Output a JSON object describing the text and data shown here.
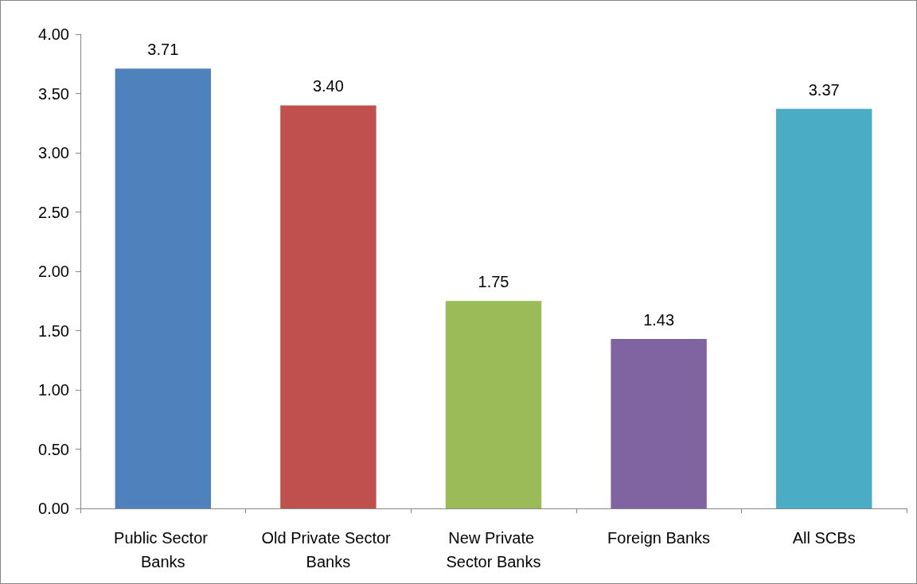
{
  "chart_data": {
    "type": "bar",
    "categories": [
      "Public Sector Banks",
      "Old Private Sector Banks",
      "New Private Sector Banks",
      "Foreign Banks",
      "All SCBs"
    ],
    "values": [
      3.71,
      3.4,
      1.75,
      1.43,
      3.37
    ],
    "colors": [
      "#4f81bd",
      "#c0504d",
      "#9bbb59",
      "#8064a2",
      "#4bacc6"
    ],
    "value_labels": [
      "3.71",
      "3.40",
      "1.75",
      "1.43",
      "3.37"
    ],
    "ylim": [
      0,
      4
    ],
    "yticks": [
      {
        "value": 0,
        "label": "0.00"
      },
      {
        "value": 0.5,
        "label": "0.50"
      },
      {
        "value": 1,
        "label": "1.00"
      },
      {
        "value": 1.5,
        "label": "1.50"
      },
      {
        "value": 2,
        "label": "2.00"
      },
      {
        "value": 2.5,
        "label": "2.50"
      },
      {
        "value": 3,
        "label": "3.00"
      },
      {
        "value": 3.5,
        "label": "3.50"
      },
      {
        "value": 4,
        "label": "4.00"
      }
    ],
    "grid": false
  }
}
